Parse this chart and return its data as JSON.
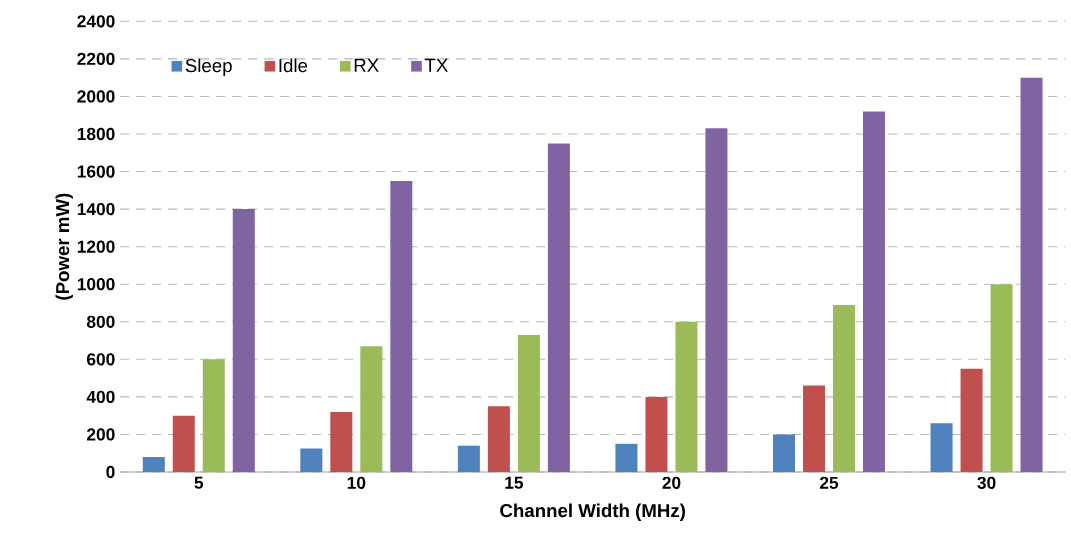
{
  "chart_data": {
    "type": "bar",
    "xlabel": "Channel Width (MHz)",
    "ylabel": "(Power mW)",
    "categories": [
      "5",
      "10",
      "15",
      "20",
      "25",
      "30"
    ],
    "series": [
      {
        "name": "Sleep",
        "color": "#4f81bd",
        "values": [
          80,
          125,
          140,
          150,
          200,
          260
        ]
      },
      {
        "name": "Idle",
        "color": "#c0504d",
        "values": [
          300,
          320,
          350,
          400,
          460,
          550
        ]
      },
      {
        "name": "RX",
        "color": "#9bbb59",
        "values": [
          600,
          670,
          730,
          800,
          890,
          1000
        ]
      },
      {
        "name": "TX",
        "color": "#8064a2",
        "values": [
          1400,
          1550,
          1750,
          1830,
          1920,
          2100
        ]
      }
    ],
    "ylim": [
      0,
      2400
    ],
    "yticks": [
      0,
      200,
      400,
      600,
      800,
      1000,
      1200,
      1400,
      1600,
      1800,
      2000,
      2200,
      2400
    ],
    "grid": "y",
    "legend": "top left"
  }
}
